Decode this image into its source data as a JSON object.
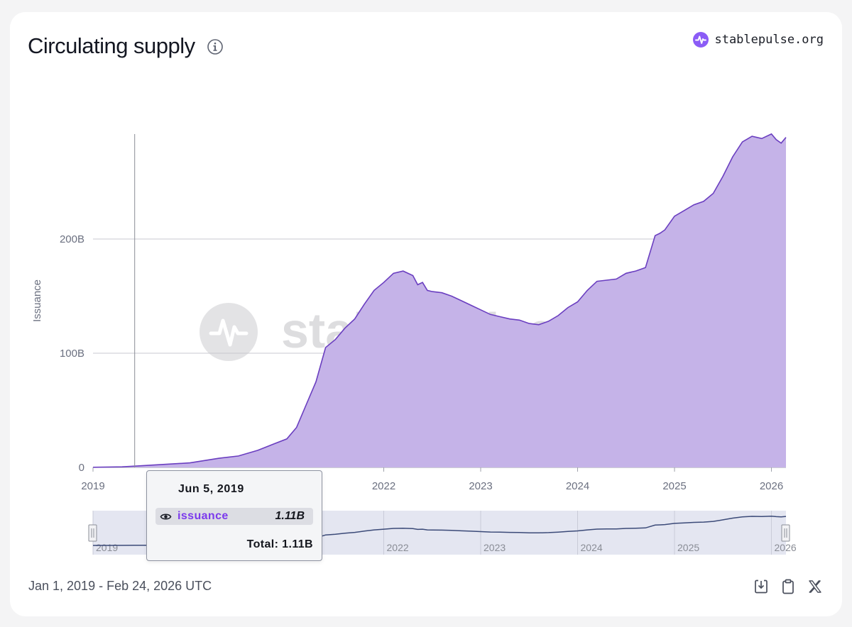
{
  "header": {
    "title": "Circulating supply",
    "brand": "stablepulse.org"
  },
  "watermark": "stablepulse.org",
  "footer": {
    "date_range": "Jan 1, 2019 - Feb 24, 2026 UTC"
  },
  "icons": [
    "info-icon",
    "pulse-logo-icon",
    "download-icon",
    "clipboard-icon",
    "x-share-icon",
    "eye-icon"
  ],
  "colors": {
    "fill": "#c5b3e8",
    "line": "#6a3ec0",
    "accent": "#7c3aed",
    "nav_line": "#3b4a78",
    "nav_bg": "#e4e6f1"
  },
  "tooltip": {
    "date": "Jun 5, 2019",
    "series": "issuance",
    "value": "1.11B",
    "total": "Total: 1.11B"
  },
  "chart_data": {
    "type": "area",
    "title": "Circulating supply",
    "ylabel": "Issuance",
    "xlabel": "",
    "x_range": [
      2019.0,
      2026.15
    ],
    "ylim": [
      0,
      290
    ],
    "y_ticks": [
      {
        "value": 0,
        "label": "0"
      },
      {
        "value": 100,
        "label": "100B"
      },
      {
        "value": 200,
        "label": "200B"
      }
    ],
    "x_ticks": [
      {
        "value": 2019,
        "label": "2019"
      },
      {
        "value": 2022,
        "label": "2022"
      },
      {
        "value": 2023,
        "label": "2023"
      },
      {
        "value": 2024,
        "label": "2024"
      },
      {
        "value": 2025,
        "label": "2025"
      },
      {
        "value": 2026,
        "label": "2026"
      }
    ],
    "crosshair_x": 2019.43,
    "series": [
      {
        "name": "issuance",
        "x": [
          2019.0,
          2019.3,
          2019.43,
          2019.6,
          2019.8,
          2020.0,
          2020.15,
          2020.3,
          2020.5,
          2020.7,
          2020.85,
          2021.0,
          2021.1,
          2021.2,
          2021.3,
          2021.4,
          2021.5,
          2021.6,
          2021.7,
          2021.8,
          2021.9,
          2022.0,
          2022.1,
          2022.2,
          2022.3,
          2022.35,
          2022.4,
          2022.45,
          2022.5,
          2022.6,
          2022.7,
          2022.8,
          2022.9,
          2023.0,
          2023.1,
          2023.2,
          2023.3,
          2023.4,
          2023.5,
          2023.6,
          2023.7,
          2023.8,
          2023.9,
          2024.0,
          2024.1,
          2024.2,
          2024.3,
          2024.4,
          2024.5,
          2024.6,
          2024.7,
          2024.8,
          2024.85,
          2024.9,
          2025.0,
          2025.1,
          2025.2,
          2025.3,
          2025.4,
          2025.5,
          2025.6,
          2025.7,
          2025.8,
          2025.9,
          2026.0,
          2026.05,
          2026.1,
          2026.15
        ],
        "values": [
          0.1,
          0.5,
          1.11,
          2,
          3,
          4,
          6,
          8,
          10,
          15,
          20,
          25,
          35,
          55,
          75,
          105,
          112,
          122,
          130,
          143,
          155,
          162,
          170,
          172,
          168,
          160,
          162,
          155,
          154,
          153,
          150,
          146,
          142,
          138,
          134,
          132,
          130,
          129,
          126,
          125,
          128,
          133,
          140,
          145,
          155,
          163,
          164,
          165,
          170,
          172,
          175,
          203,
          205,
          208,
          220,
          225,
          230,
          233,
          240,
          255,
          272,
          285,
          290,
          288,
          292,
          287,
          284,
          289
        ]
      }
    ],
    "navigator": {
      "x_ticks": [
        {
          "value": 2019,
          "label": "2019"
        },
        {
          "value": 2022,
          "label": "2022"
        },
        {
          "value": 2023,
          "label": "2023"
        },
        {
          "value": 2024,
          "label": "2024"
        },
        {
          "value": 2025,
          "label": "2025"
        },
        {
          "value": 2026,
          "label": "2026"
        }
      ]
    }
  }
}
